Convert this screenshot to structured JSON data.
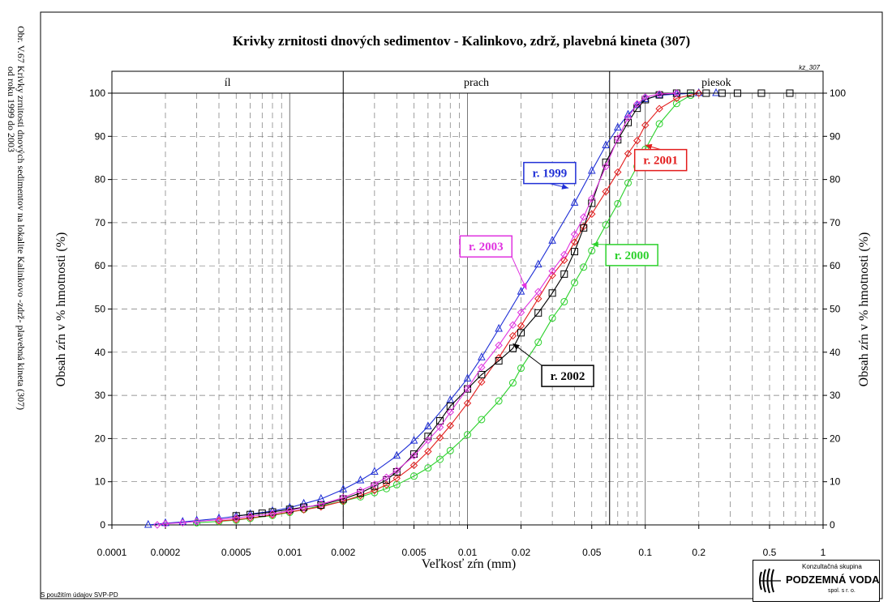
{
  "side_caption": {
    "line1": "Obr. V.67 Krivky zrnitosti dnových sedimentov na lokalite Kalinkovo -zdrž- plavebná kineta (307)",
    "line2": "od roku 1999 do 2003"
  },
  "credit": "S použitím údajov SVP-PD",
  "logo": {
    "top": "Konzultačná skupina",
    "main": "PODZEMNÁ VODA",
    "bottom": "spol. s r. o."
  },
  "chart_data": {
    "type": "line",
    "title": "Krivky zrnitosti dnových sedimentov - Kalinkovo, zdrž, plavebná kineta (307)",
    "code": "kz_307",
    "xlabel": "Veľkosť zŕn (mm)",
    "ylabel": "Obsah zŕn v % hmotnosti (%)",
    "x_scale": "log",
    "xlim": [
      0.0001,
      1
    ],
    "ylim": [
      0,
      100
    ],
    "grid": true,
    "x_ticks": [
      {
        "value": 0.0001,
        "label": "0.0001"
      },
      {
        "value": 0.0002,
        "label": "0.0002"
      },
      {
        "value": 0.0005,
        "label": "0.0005"
      },
      {
        "value": 0.001,
        "label": "0.001"
      },
      {
        "value": 0.002,
        "label": "0.002"
      },
      {
        "value": 0.005,
        "label": "0.005"
      },
      {
        "value": 0.01,
        "label": "0.01"
      },
      {
        "value": 0.02,
        "label": "0.02"
      },
      {
        "value": 0.05,
        "label": "0.05"
      },
      {
        "value": 0.1,
        "label": "0.1"
      },
      {
        "value": 0.2,
        "label": "0.2"
      },
      {
        "value": 0.5,
        "label": "0.5"
      },
      {
        "value": 1,
        "label": "1"
      }
    ],
    "y_ticks": [
      0,
      10,
      20,
      30,
      40,
      50,
      60,
      70,
      80,
      90,
      100
    ],
    "zones": [
      {
        "label": "íl",
        "from": 0.0001,
        "to": 0.002
      },
      {
        "label": "prach",
        "from": 0.002,
        "to": 0.063
      },
      {
        "label": "piesok",
        "from": 0.063,
        "to": 1
      }
    ],
    "series": [
      {
        "name": "r. 1999",
        "color": "#1f2fd6",
        "marker": "triangle",
        "label_at": [
          0.029,
          81.5
        ],
        "arrow_to": [
          0.037,
          78
        ],
        "x": [
          0.00016,
          0.0002,
          0.00025,
          0.0003,
          0.0004,
          0.0005,
          0.0006,
          0.0008,
          0.001,
          0.0012,
          0.0015,
          0.002,
          0.0025,
          0.003,
          0.004,
          0.005,
          0.006,
          0.008,
          0.01,
          0.012,
          0.015,
          0.02,
          0.025,
          0.03,
          0.04,
          0.05,
          0.06,
          0.07,
          0.08,
          0.09,
          0.1,
          0.12,
          0.15,
          0.2,
          0.25
        ],
        "y": [
          0,
          0.4,
          0.7,
          1.0,
          1.5,
          2.0,
          2.5,
          3.2,
          4.0,
          4.9,
          6.0,
          8.2,
          10.3,
          12.3,
          16.0,
          19.5,
          22.8,
          28.9,
          33.9,
          38.8,
          45.4,
          54.0,
          60.3,
          65.8,
          74.6,
          82.0,
          87.9,
          92.0,
          95.0,
          97.2,
          98.6,
          99.5,
          99.8,
          100,
          100
        ]
      },
      {
        "name": "r. 2000",
        "color": "#2cd12c",
        "marker": "circle",
        "label_at": [
          0.084,
          62.5
        ],
        "arrow_to": [
          0.05,
          65
        ],
        "x": [
          0.0003,
          0.0004,
          0.0005,
          0.0006,
          0.0008,
          0.001,
          0.0012,
          0.0015,
          0.002,
          0.0025,
          0.003,
          0.0035,
          0.004,
          0.005,
          0.006,
          0.007,
          0.008,
          0.01,
          0.012,
          0.015,
          0.018,
          0.02,
          0.025,
          0.03,
          0.035,
          0.04,
          0.045,
          0.05,
          0.06,
          0.07,
          0.08,
          0.09,
          0.1,
          0.12,
          0.15,
          0.18
        ],
        "y": [
          0.5,
          0.8,
          1.1,
          1.5,
          2.2,
          2.9,
          3.6,
          4.4,
          5.5,
          6.5,
          7.5,
          8.4,
          9.3,
          11.3,
          13.2,
          15.2,
          17.2,
          20.9,
          24.4,
          28.7,
          32.9,
          36.3,
          42.3,
          47.9,
          51.7,
          56.1,
          59.7,
          63.5,
          69.5,
          74.4,
          79.2,
          83.0,
          87.0,
          92.9,
          97.6,
          99.5
        ]
      },
      {
        "name": "r. 2001",
        "color": "#e31c1c",
        "marker": "diamond",
        "label_at": [
          0.122,
          84.5
        ],
        "arrow_to": [
          0.1,
          88
        ],
        "x": [
          0.0004,
          0.0005,
          0.0006,
          0.0008,
          0.001,
          0.0012,
          0.0015,
          0.002,
          0.0025,
          0.003,
          0.0035,
          0.004,
          0.005,
          0.006,
          0.007,
          0.008,
          0.01,
          0.012,
          0.015,
          0.018,
          0.02,
          0.025,
          0.03,
          0.035,
          0.04,
          0.045,
          0.05,
          0.06,
          0.07,
          0.08,
          0.09,
          0.1,
          0.12,
          0.15,
          0.2
        ],
        "y": [
          0.9,
          1.2,
          1.6,
          2.3,
          3.0,
          3.5,
          4.2,
          5.5,
          6.8,
          8.0,
          9.3,
          10.8,
          13.8,
          17.0,
          20.2,
          23.0,
          28.2,
          33.1,
          38.7,
          43.8,
          46.1,
          52.4,
          57.8,
          61.3,
          65.5,
          69.1,
          72.0,
          77.2,
          81.7,
          86.0,
          89.0,
          92.6,
          96.4,
          98.8,
          100
        ]
      },
      {
        "name": "r. 2002",
        "color": "#000000",
        "marker": "square",
        "label_at": [
          0.0366,
          34.5
        ],
        "arrow_to": [
          0.018,
          42
        ],
        "x": [
          0.0005,
          0.0006,
          0.0007,
          0.0008,
          0.001,
          0.0012,
          0.0015,
          0.002,
          0.0025,
          0.003,
          0.0035,
          0.004,
          0.005,
          0.006,
          0.007,
          0.008,
          0.01,
          0.012,
          0.015,
          0.018,
          0.02,
          0.025,
          0.03,
          0.035,
          0.04,
          0.045,
          0.05,
          0.06,
          0.07,
          0.08,
          0.09,
          0.1,
          0.12,
          0.15,
          0.18,
          0.22,
          0.27,
          0.33,
          0.45,
          0.65
        ],
        "y": [
          2.1,
          2.4,
          2.7,
          3.0,
          3.6,
          4.1,
          4.6,
          6.0,
          7.4,
          9.0,
          10.4,
          12.3,
          16.4,
          20.5,
          24.1,
          27.5,
          31.5,
          34.8,
          38.0,
          40.9,
          44.5,
          49.1,
          53.7,
          58.1,
          63.3,
          68.8,
          74.5,
          84.0,
          89.2,
          93.2,
          96.5,
          98.5,
          99.6,
          100,
          100,
          100,
          100,
          100,
          100,
          100
        ]
      },
      {
        "name": "r. 2003",
        "color": "#e033e0",
        "marker": "diamond",
        "label_at": [
          0.0127,
          64.5
        ],
        "arrow_to": [
          0.0215,
          54.5
        ],
        "x": [
          0.00018,
          0.0002,
          0.00025,
          0.0003,
          0.0004,
          0.0005,
          0.0006,
          0.0008,
          0.001,
          0.0012,
          0.0015,
          0.002,
          0.0025,
          0.003,
          0.0035,
          0.004,
          0.005,
          0.006,
          0.007,
          0.008,
          0.01,
          0.012,
          0.015,
          0.018,
          0.02,
          0.025,
          0.03,
          0.035,
          0.04,
          0.045,
          0.05,
          0.06,
          0.07,
          0.08,
          0.09,
          0.1,
          0.12,
          0.15
        ],
        "y": [
          0,
          0.3,
          0.5,
          0.8,
          1.2,
          1.6,
          2.0,
          2.6,
          3.3,
          4.0,
          4.8,
          6.3,
          7.9,
          9.4,
          11.0,
          12.6,
          16.0,
          19.6,
          22.6,
          26.1,
          31.6,
          36.5,
          41.6,
          46.3,
          49.2,
          54.0,
          58.8,
          62.6,
          67.3,
          71.3,
          75.6,
          83.0,
          89.5,
          94.3,
          97.5,
          99.1,
          99.8,
          100
        ]
      }
    ]
  }
}
